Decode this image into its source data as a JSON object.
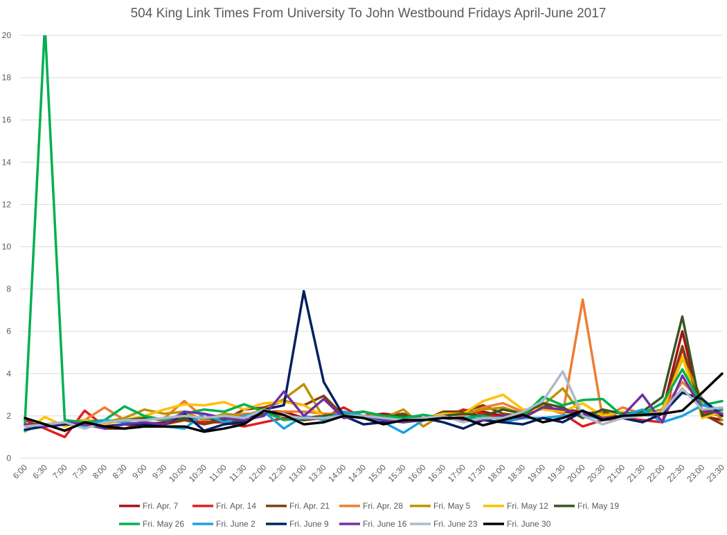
{
  "chart_data": {
    "type": "line",
    "title": "504 King Link Times From University To John Westbound Fridays April-June 2017",
    "xlabel": "",
    "ylabel": "",
    "ylim": [
      0,
      20
    ],
    "yticks": [
      0,
      2,
      4,
      6,
      8,
      10,
      12,
      14,
      16,
      18,
      20
    ],
    "grid": true,
    "legend_position": "bottom",
    "x": [
      "6:00",
      "6:30",
      "7:00",
      "7:30",
      "8:00",
      "8:30",
      "9:00",
      "9:30",
      "10:00",
      "10:30",
      "11:00",
      "11:30",
      "12:00",
      "12:30",
      "13:00",
      "13:30",
      "14:00",
      "14:30",
      "15:00",
      "15:30",
      "16:00",
      "16:30",
      "17:00",
      "17:30",
      "18:00",
      "18:30",
      "19:00",
      "19:30",
      "20:00",
      "20:30",
      "21:00",
      "21:30",
      "22:00",
      "22:30",
      "23:00",
      "23:30"
    ],
    "series": [
      {
        "name": "Fri. Apr. 7",
        "color": "#a50f15",
        "values": [
          1.9,
          1.6,
          1.3,
          1.7,
          1.5,
          1.6,
          1.6,
          1.7,
          1.8,
          1.7,
          1.8,
          2.0,
          2.2,
          2.2,
          1.9,
          2.0,
          2.2,
          2.0,
          2.1,
          2.0,
          1.9,
          2.0,
          2.1,
          2.2,
          2.0,
          2.1,
          2.4,
          2.3,
          2.2,
          2.0,
          1.9,
          2.1,
          2.2,
          6.0,
          2.0,
          1.8
        ]
      },
      {
        "name": "Fri. Apr. 14",
        "color": "#e41a1c",
        "values": [
          1.8,
          1.4,
          1.0,
          2.25,
          1.5,
          1.6,
          1.5,
          1.6,
          1.8,
          1.7,
          1.7,
          1.5,
          1.7,
          1.9,
          1.8,
          1.9,
          2.4,
          1.9,
          1.8,
          1.7,
          1.9,
          1.9,
          2.3,
          2.1,
          1.9,
          1.9,
          2.6,
          2.1,
          1.5,
          1.8,
          1.9,
          1.8,
          1.7,
          5.2,
          2.2,
          2.0
        ]
      },
      {
        "name": "Fri. Apr. 21",
        "color": "#7f3f0a",
        "values": [
          1.5,
          1.5,
          1.6,
          1.7,
          1.4,
          1.4,
          1.6,
          1.6,
          1.8,
          1.6,
          1.8,
          2.3,
          2.4,
          2.7,
          2.5,
          2.95,
          2.0,
          1.9,
          2.0,
          2.1,
          1.8,
          2.2,
          2.2,
          2.5,
          2.1,
          2.0,
          2.5,
          2.2,
          2.1,
          2.2,
          1.9,
          2.0,
          2.1,
          5.3,
          2.1,
          1.6
        ]
      },
      {
        "name": "Fri. Apr. 28",
        "color": "#ed7d31",
        "values": [
          1.6,
          1.5,
          1.7,
          1.8,
          2.4,
          1.8,
          1.8,
          1.9,
          2.7,
          1.9,
          2.0,
          2.1,
          2.1,
          2.2,
          2.2,
          2.1,
          2.1,
          2.2,
          1.9,
          2.0,
          1.9,
          2.1,
          2.0,
          2.4,
          2.6,
          2.2,
          2.4,
          2.1,
          7.5,
          1.9,
          2.4,
          2.1,
          2.3,
          3.6,
          2.7,
          2.0
        ]
      },
      {
        "name": "Fri. May 5",
        "color": "#bf9000",
        "values": [
          1.6,
          1.5,
          1.6,
          1.8,
          1.7,
          1.9,
          2.3,
          2.1,
          2.2,
          1.8,
          2.1,
          2.0,
          2.3,
          2.8,
          3.5,
          1.9,
          2.0,
          2.2,
          1.9,
          2.3,
          1.5,
          2.1,
          2.1,
          2.3,
          2.4,
          2.1,
          2.5,
          3.3,
          2.0,
          2.1,
          1.9,
          2.1,
          2.3,
          4.7,
          2.8,
          1.8
        ]
      },
      {
        "name": "Fri. May 12",
        "color": "#ffc000",
        "values": [
          1.25,
          1.95,
          1.5,
          1.8,
          1.6,
          1.8,
          2.0,
          2.3,
          2.55,
          2.5,
          2.65,
          2.3,
          2.6,
          2.65,
          2.5,
          2.0,
          2.0,
          2.0,
          1.9,
          1.8,
          1.9,
          2.1,
          2.1,
          2.7,
          3.0,
          2.3,
          2.3,
          2.2,
          2.6,
          2.0,
          2.2,
          2.0,
          2.2,
          4.8,
          1.9,
          2.2
        ]
      },
      {
        "name": "Fri. May 19",
        "color": "#375623",
        "values": [
          1.6,
          1.6,
          1.7,
          1.7,
          1.7,
          1.8,
          1.9,
          1.8,
          1.9,
          1.9,
          1.8,
          1.7,
          2.1,
          2.0,
          1.8,
          2.0,
          2.1,
          2.2,
          2.0,
          2.0,
          1.9,
          2.0,
          2.1,
          2.0,
          2.3,
          2.1,
          2.6,
          2.4,
          1.9,
          2.3,
          2.1,
          2.2,
          2.9,
          6.7,
          2.0,
          2.3
        ]
      },
      {
        "name": "Fri. May 26",
        "color": "#00b050",
        "values": [
          1.7,
          20.5,
          1.8,
          1.7,
          1.8,
          2.45,
          2.0,
          1.8,
          2.1,
          2.3,
          2.2,
          2.55,
          2.2,
          1.8,
          1.9,
          1.9,
          2.1,
          2.2,
          2.0,
          1.9,
          2.05,
          1.9,
          1.9,
          2.0,
          1.8,
          2.0,
          2.9,
          2.5,
          2.75,
          2.8,
          2.0,
          2.1,
          2.6,
          4.2,
          2.5,
          2.7
        ]
      },
      {
        "name": "Fri. June 2",
        "color": "#1ba1e2",
        "values": [
          1.3,
          1.6,
          1.7,
          1.5,
          1.8,
          1.7,
          1.6,
          1.5,
          1.4,
          2.1,
          1.7,
          2.0,
          2.2,
          1.4,
          2.0,
          1.8,
          2.2,
          2.0,
          1.7,
          1.2,
          1.8,
          1.9,
          1.9,
          1.8,
          1.7,
          1.9,
          1.9,
          2.0,
          2.1,
          1.8,
          2.0,
          2.3,
          1.7,
          2.0,
          2.5,
          2.3
        ]
      },
      {
        "name": "Fri. June 9",
        "color": "#002060",
        "values": [
          1.35,
          1.5,
          1.6,
          1.6,
          1.5,
          1.6,
          1.6,
          1.6,
          2.1,
          1.3,
          1.6,
          1.7,
          2.3,
          2.5,
          7.9,
          3.6,
          2.0,
          1.6,
          1.7,
          1.8,
          1.9,
          1.7,
          1.4,
          1.8,
          1.7,
          1.6,
          1.9,
          1.7,
          2.2,
          1.9,
          1.9,
          1.7,
          2.1,
          3.1,
          2.8,
          2.0
        ]
      },
      {
        "name": "Fri. June 16",
        "color": "#7030a0",
        "values": [
          1.6,
          1.5,
          1.7,
          1.6,
          1.4,
          1.6,
          1.7,
          1.6,
          2.2,
          2.1,
          1.9,
          1.8,
          2.0,
          3.15,
          2.0,
          2.8,
          1.9,
          2.0,
          1.8,
          1.7,
          1.8,
          1.9,
          1.8,
          1.8,
          2.0,
          1.9,
          2.4,
          2.3,
          2.1,
          1.9,
          2.0,
          3.0,
          1.7,
          3.9,
          2.3,
          2.1
        ]
      },
      {
        "name": "Fri. June 23",
        "color": "#adb9ca",
        "values": [
          1.5,
          1.6,
          1.7,
          1.4,
          1.7,
          1.8,
          1.8,
          1.9,
          2.0,
          1.9,
          2.0,
          1.9,
          2.3,
          2.0,
          1.9,
          1.9,
          2.0,
          2.0,
          1.9,
          1.8,
          1.9,
          2.0,
          1.7,
          1.9,
          1.9,
          2.2,
          2.7,
          4.1,
          2.0,
          1.6,
          1.9,
          2.0,
          2.2,
          3.3,
          2.3,
          2.4
        ]
      },
      {
        "name": "Fri. June 30",
        "color": "#000000",
        "values": [
          1.9,
          1.6,
          1.3,
          1.7,
          1.5,
          1.4,
          1.5,
          1.5,
          1.5,
          1.25,
          1.4,
          1.6,
          2.25,
          2.05,
          1.6,
          1.7,
          2.0,
          1.9,
          1.6,
          1.8,
          1.8,
          1.9,
          1.9,
          1.55,
          1.8,
          2.05,
          1.7,
          1.9,
          2.25,
          1.8,
          2.0,
          2.05,
          2.1,
          2.25,
          3.1,
          4.0
        ]
      }
    ]
  }
}
